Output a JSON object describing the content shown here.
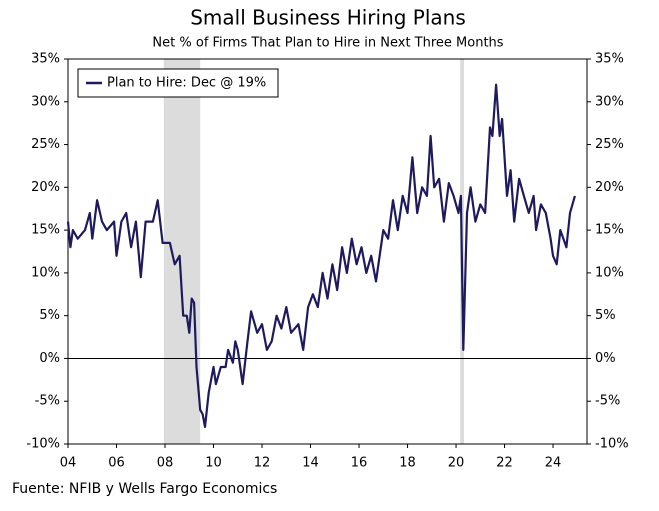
{
  "chart_data": {
    "type": "line",
    "title": "Small Business Hiring Plans",
    "subtitle": "Net % of Firms That Plan to Hire in Next Three Months",
    "source": "Fuente: NFIB y Wells Fargo Economics",
    "legend_position": "upper-left",
    "grid": false,
    "zero_line": true,
    "shaded_periods": [
      [
        2007.95,
        2009.45
      ],
      [
        2020.17,
        2020.33
      ]
    ],
    "xlim": [
      2004,
      2025.4
    ],
    "xticks": [
      {
        "value": 2004,
        "label": "04"
      },
      {
        "value": 2006,
        "label": "06"
      },
      {
        "value": 2008,
        "label": "08"
      },
      {
        "value": 2010,
        "label": "10"
      },
      {
        "value": 2012,
        "label": "12"
      },
      {
        "value": 2014,
        "label": "14"
      },
      {
        "value": 2016,
        "label": "16"
      },
      {
        "value": 2018,
        "label": "18"
      },
      {
        "value": 2020,
        "label": "20"
      },
      {
        "value": 2022,
        "label": "22"
      },
      {
        "value": 2024,
        "label": "24"
      }
    ],
    "ylim": [
      -10,
      35
    ],
    "yticks": [
      {
        "value": 35,
        "label": "35%"
      },
      {
        "value": 30,
        "label": "30%"
      },
      {
        "value": 25,
        "label": "25%"
      },
      {
        "value": 20,
        "label": "20%"
      },
      {
        "value": 15,
        "label": "15%"
      },
      {
        "value": 10,
        "label": "10%"
      },
      {
        "value": 5,
        "label": "5%"
      },
      {
        "value": 0,
        "label": "0%"
      },
      {
        "value": -5,
        "label": "-5%"
      },
      {
        "value": -10,
        "label": "-10%"
      }
    ],
    "x": [
      2004.0,
      2004.1,
      2004.2,
      2004.4,
      2004.7,
      2004.9,
      2005.0,
      2005.2,
      2005.4,
      2005.6,
      2005.9,
      2006.0,
      2006.2,
      2006.4,
      2006.6,
      2006.8,
      2007.0,
      2007.2,
      2007.5,
      2007.7,
      2007.9,
      2008.2,
      2008.4,
      2008.6,
      2008.75,
      2008.9,
      2009.0,
      2009.1,
      2009.2,
      2009.3,
      2009.45,
      2009.55,
      2009.65,
      2009.8,
      2010.0,
      2010.1,
      2010.3,
      2010.5,
      2010.6,
      2010.8,
      2010.9,
      2011.0,
      2011.2,
      2011.4,
      2011.55,
      2011.8,
      2012.0,
      2012.2,
      2012.4,
      2012.6,
      2012.8,
      2013.0,
      2013.2,
      2013.5,
      2013.7,
      2013.9,
      2014.1,
      2014.3,
      2014.5,
      2014.7,
      2014.9,
      2015.1,
      2015.3,
      2015.5,
      2015.7,
      2015.9,
      2016.1,
      2016.3,
      2016.5,
      2016.7,
      2017.0,
      2017.2,
      2017.4,
      2017.6,
      2017.8,
      2018.0,
      2018.2,
      2018.4,
      2018.6,
      2018.8,
      2018.95,
      2019.1,
      2019.3,
      2019.5,
      2019.7,
      2019.9,
      2020.1,
      2020.2,
      2020.3,
      2020.45,
      2020.6,
      2020.8,
      2021.0,
      2021.2,
      2021.4,
      2021.5,
      2021.65,
      2021.8,
      2021.9,
      2022.1,
      2022.25,
      2022.4,
      2022.6,
      2022.8,
      2023.0,
      2023.2,
      2023.3,
      2023.5,
      2023.7,
      2023.9,
      2024.0,
      2024.15,
      2024.3,
      2024.55,
      2024.7,
      2024.9
    ],
    "series": [
      {
        "name": "Plan to Hire: Dec @ 19%",
        "color": "#1f1a5e",
        "values": [
          16,
          13,
          15,
          14,
          15,
          17,
          14,
          18.5,
          16,
          15,
          16,
          12,
          16,
          17,
          13,
          16,
          9.5,
          16,
          16,
          18.5,
          13.5,
          13.5,
          11,
          12,
          5,
          5,
          3,
          7,
          6.5,
          -1,
          -6,
          -6.5,
          -8,
          -4,
          -1,
          -3,
          -1,
          -1,
          1,
          -0.5,
          2,
          1,
          -3,
          2,
          5.5,
          3,
          4,
          1,
          2,
          5,
          3.5,
          6,
          3,
          4,
          1,
          6,
          7.5,
          6,
          10,
          7,
          11,
          8,
          13,
          10,
          14,
          11,
          13,
          10,
          12,
          9,
          15,
          14,
          18.5,
          15,
          19,
          17,
          23.5,
          17,
          20,
          19,
          26,
          20,
          21,
          16,
          20.5,
          19,
          17,
          19,
          1,
          17,
          20,
          16,
          18,
          17,
          27,
          26,
          32,
          26,
          28,
          19,
          22,
          16,
          21,
          19,
          17,
          19,
          15,
          18,
          17,
          14,
          12,
          11,
          15,
          13,
          17,
          19
        ]
      }
    ]
  }
}
